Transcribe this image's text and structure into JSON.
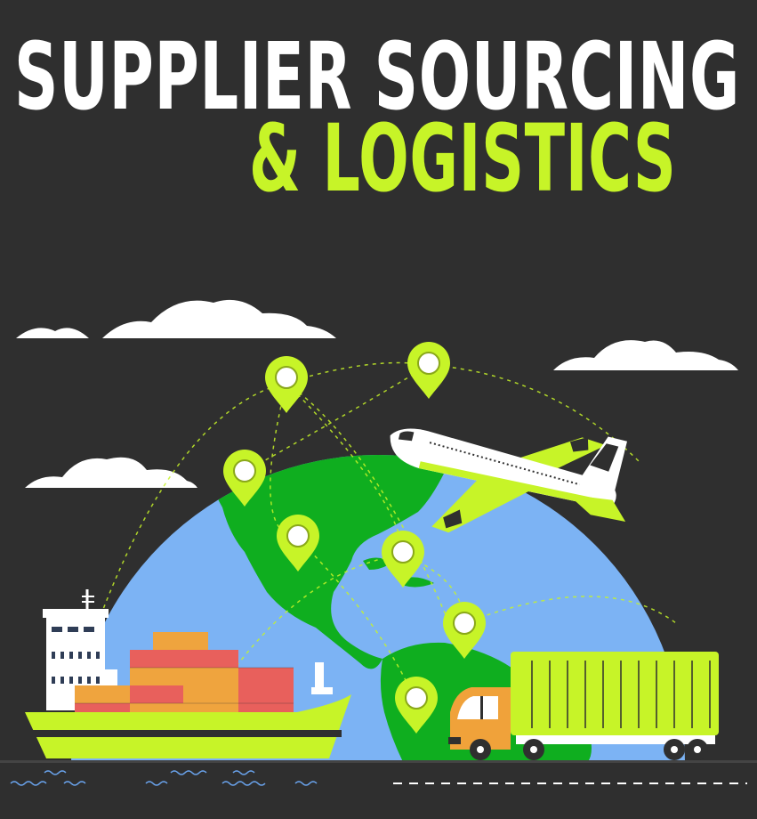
{
  "title": {
    "line1": "SUPPLIER SOURCING",
    "line2": "& LOGISTICS"
  },
  "colors": {
    "background": "#2f2f2f",
    "accent": "#c7f428",
    "title_white": "#ffffff",
    "ocean": "#7cb3f4",
    "land": "#0fae1f",
    "container_red": "#e8605c",
    "container_orange": "#efa43e",
    "truck_cab": "#f0a23a"
  },
  "icons": [
    "cloud-icon",
    "globe-icon",
    "location-pin-icon",
    "airplane-icon",
    "cargo-ship-icon",
    "container-truck-icon",
    "water-waves-icon",
    "road-line-icon"
  ]
}
